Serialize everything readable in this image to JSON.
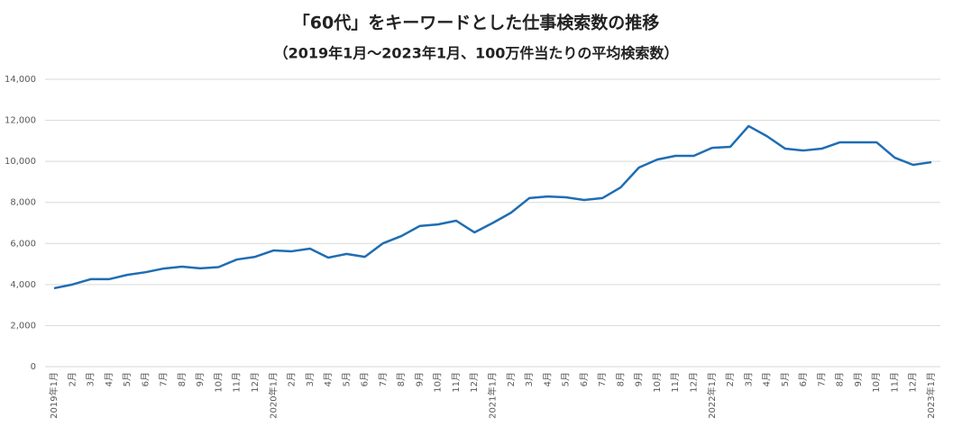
{
  "chart_data": {
    "type": "line",
    "title": "「60代」をキーワードとした仕事検索数の推移",
    "subtitle": "（2019年1月〜2023年1月、100万件当たりの平均検索数）",
    "categories": [
      "2019年1月",
      "2月",
      "3月",
      "4月",
      "5月",
      "6月",
      "7月",
      "8月",
      "9月",
      "10月",
      "11月",
      "12月",
      "2020年1月",
      "2月",
      "3月",
      "4月",
      "5月",
      "6月",
      "7月",
      "8月",
      "9月",
      "10月",
      "11月",
      "12月",
      "2021年1月",
      "2月",
      "3月",
      "4月",
      "5月",
      "6月",
      "7月",
      "8月",
      "9月",
      "10月",
      "11月",
      "12月",
      "2022年1月",
      "2月",
      "3月",
      "4月",
      "5月",
      "6月",
      "7月",
      "8月",
      "9月",
      "10月",
      "11月",
      "12月",
      "2023年1月"
    ],
    "series": [
      {
        "color": "#1f6db3",
        "values": [
          3820,
          4000,
          4260,
          4260,
          4470,
          4600,
          4780,
          4870,
          4790,
          4850,
          5220,
          5350,
          5660,
          5620,
          5750,
          5310,
          5490,
          5350,
          6010,
          6360,
          6850,
          6930,
          7110,
          6540,
          7000,
          7500,
          8210,
          8290,
          8250,
          8120,
          8210,
          8730,
          9700,
          10090,
          10270,
          10270,
          10660,
          10710,
          11720,
          11230,
          10620,
          10530,
          10620,
          10930,
          10930,
          10930,
          10180,
          9830,
          9960
        ]
      }
    ],
    "ylim": [
      0,
      14000
    ],
    "yticks": [
      0,
      {
        "value": 2000,
        "label": "2,000"
      },
      {
        "value": 4000,
        "label": "4,000"
      },
      {
        "value": 6000,
        "label": "6,000"
      },
      {
        "value": 8000,
        "label": "8,000"
      },
      {
        "value": 10000,
        "label": "10,000"
      },
      {
        "value": 12000,
        "label": "12,000"
      },
      {
        "value": 14000,
        "label": "14,000"
      }
    ],
    "grid": true
  }
}
